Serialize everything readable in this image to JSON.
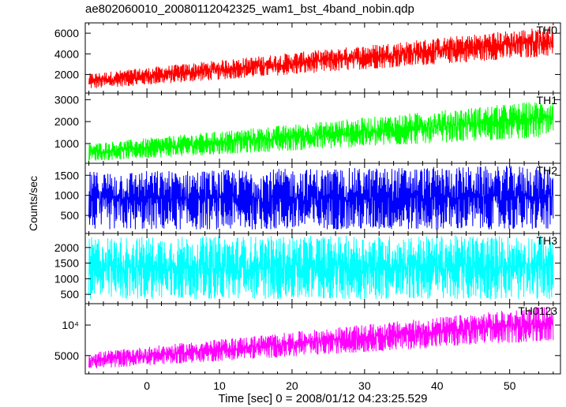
{
  "chart_data": {
    "type": "line",
    "title": "ae802060010_20080112042325_wam1_bst_4band_nobin.qdp",
    "ylabel": "Counts/sec",
    "xlabel": "Time [sec] 0 = 2008/01/12 04:23:25.529",
    "x_ticks": [
      "0",
      "10",
      "20",
      "30",
      "40",
      "50"
    ],
    "xlim": [
      -8.5,
      57
    ],
    "x_data_range": [
      -8,
      56
    ],
    "grid": false,
    "panels": [
      {
        "name": "TH0",
        "color": "#ff0000",
        "ylim": [
          200,
          7000
        ],
        "y_ticks": [
          {
            "value": 2000,
            "label": "2000"
          },
          {
            "value": 4000,
            "label": "4000"
          },
          {
            "value": 6000,
            "label": "6000"
          }
        ],
        "trend": {
          "x": [
            -8,
            56
          ],
          "low": [
            600,
            3800
          ],
          "high": [
            2100,
            6700
          ]
        }
      },
      {
        "name": "TH1",
        "color": "#00ff00",
        "ylim": [
          100,
          3300
        ],
        "y_ticks": [
          {
            "value": 1000,
            "label": "1000"
          },
          {
            "value": 2000,
            "label": "2000"
          },
          {
            "value": 3000,
            "label": "3000"
          }
        ],
        "trend": {
          "x": [
            -8,
            56
          ],
          "low": [
            200,
            1300
          ],
          "high": [
            1000,
            3000
          ]
        }
      },
      {
        "name": "TH2",
        "color": "#0000ff",
        "ylim": [
          50,
          1800
        ],
        "y_ticks": [
          {
            "value": 500,
            "label": "500"
          },
          {
            "value": 1000,
            "label": "1000"
          },
          {
            "value": 1500,
            "label": "1500"
          }
        ],
        "trend": {
          "x": [
            -8,
            56
          ],
          "low": [
            150,
            150
          ],
          "high": [
            1600,
            1750
          ]
        }
      },
      {
        "name": "TH3",
        "color": "#00ffff",
        "ylim": [
          200,
          2450
        ],
        "y_ticks": [
          {
            "value": 500,
            "label": "500"
          },
          {
            "value": 1000,
            "label": "1000"
          },
          {
            "value": 1500,
            "label": "1500"
          },
          {
            "value": 2000,
            "label": "2000"
          }
        ],
        "trend": {
          "x": [
            -8,
            56
          ],
          "low": [
            350,
            350
          ],
          "high": [
            2350,
            2400
          ]
        }
      },
      {
        "name": "TH0123",
        "color": "#ff00ff",
        "ylim": [
          2000,
          13500
        ],
        "y_ticks": [
          {
            "value": 5000,
            "label": "5000"
          },
          {
            "value": 10000,
            "label": "10⁴"
          }
        ],
        "trend": {
          "x": [
            -8,
            56
          ],
          "low": [
            2800,
            7500
          ],
          "high": [
            5500,
            13200
          ]
        }
      }
    ]
  }
}
